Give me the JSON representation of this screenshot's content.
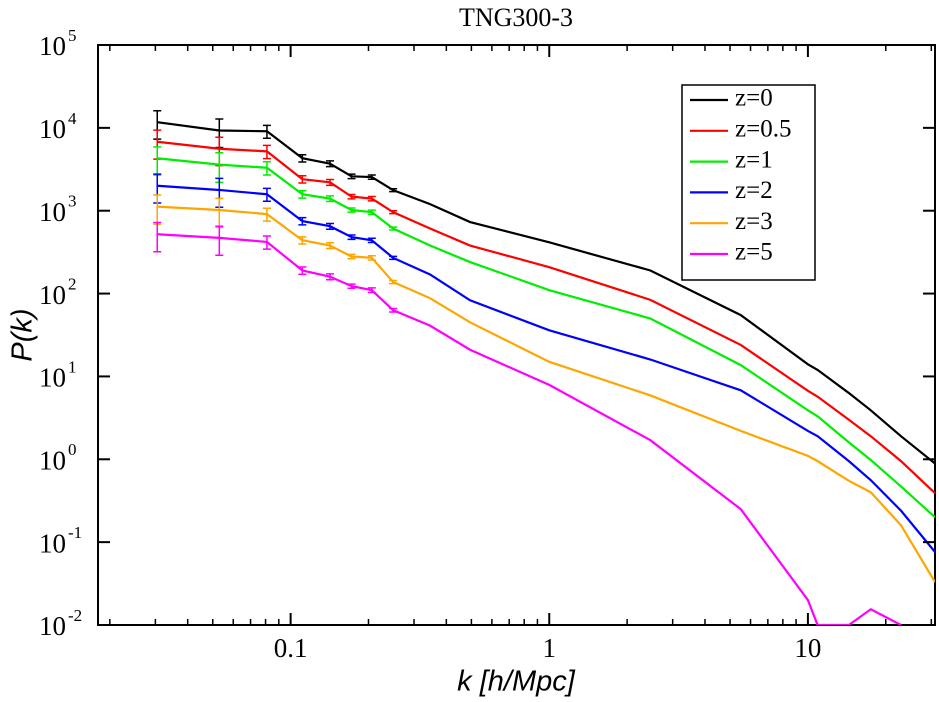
{
  "chart_data": {
    "type": "line",
    "title": "TNG300-3",
    "xlabel": "k [h/Mpc]",
    "ylabel": "P(k)",
    "xscale": "log",
    "yscale": "log",
    "xlim": [
      0.018,
      31
    ],
    "ylim": [
      0.01,
      100000
    ],
    "xticks": [
      0.1,
      1,
      10
    ],
    "xminorticks": [
      0.02,
      0.03,
      0.04,
      0.05,
      0.06,
      0.07,
      0.08,
      0.09,
      0.2,
      0.3,
      0.4,
      0.5,
      0.6,
      0.7,
      0.8,
      0.9,
      2,
      3,
      4,
      5,
      6,
      7,
      8,
      9,
      20,
      30
    ],
    "yticks": [
      {
        "value": 0.01,
        "label": "10",
        "exponent": "-2"
      },
      {
        "value": 0.1,
        "label": "10",
        "exponent": "-1"
      },
      {
        "value": 1,
        "label": "10",
        "exponent": "0"
      },
      {
        "value": 10,
        "label": "10",
        "exponent": "1"
      },
      {
        "value": 100,
        "label": "10",
        "exponent": "2"
      },
      {
        "value": 1000,
        "label": "10",
        "exponent": "3"
      },
      {
        "value": 10000,
        "label": "10",
        "exponent": "4"
      },
      {
        "value": 100000,
        "label": "10",
        "exponent": "5"
      }
    ],
    "legend": "upper right",
    "x": [
      0.0305,
      0.053,
      0.081,
      0.111,
      0.142,
      0.172,
      0.206,
      0.249,
      0.346,
      0.494,
      1,
      2.46,
      5.5,
      10,
      10.9,
      14.4,
      17.5,
      22.9,
      31
    ],
    "series": [
      {
        "name": "z=0",
        "color": "#000000",
        "values": [
          11700,
          9300,
          9100,
          4300,
          3700,
          2600,
          2550,
          1770,
          1200,
          730,
          415,
          190,
          55,
          14,
          12,
          6.3,
          3.9,
          1.9,
          0.89
        ],
        "errors": [
          4400,
          3500,
          1600,
          430,
          300,
          160,
          150,
          70,
          null,
          null,
          null,
          null,
          null,
          null,
          null,
          null,
          null,
          null,
          null
        ]
      },
      {
        "name": "z=0.5",
        "color": "#ff0000",
        "values": [
          6800,
          5600,
          5200,
          2400,
          2200,
          1480,
          1400,
          960,
          610,
          380,
          208,
          84,
          24,
          6.7,
          5.7,
          3.0,
          1.9,
          0.95,
          0.39
        ],
        "errors": [
          2600,
          2100,
          940,
          240,
          180,
          90,
          85,
          38,
          null,
          null,
          null,
          null,
          null,
          null,
          null,
          null,
          null,
          null,
          null
        ]
      },
      {
        "name": "z=1",
        "color": "#00ee00",
        "values": [
          4300,
          3600,
          3300,
          1580,
          1400,
          1020,
          960,
          610,
          380,
          240,
          110,
          50,
          13.7,
          3.9,
          3.3,
          1.6,
          0.98,
          0.47,
          0.2
        ],
        "errors": [
          1600,
          1400,
          600,
          160,
          110,
          60,
          58,
          24,
          null,
          null,
          null,
          null,
          null,
          null,
          null,
          null,
          null,
          null,
          null
        ]
      },
      {
        "name": "z=2",
        "color": "#0000ff",
        "values": [
          2000,
          1780,
          1580,
          750,
          650,
          480,
          440,
          270,
          170,
          83,
          36,
          16,
          6.8,
          2.2,
          1.9,
          0.95,
          0.56,
          0.24,
          0.076
        ],
        "errors": [
          760,
          680,
          280,
          75,
          52,
          29,
          26,
          11,
          null,
          null,
          null,
          null,
          null,
          null,
          null,
          null,
          null,
          null,
          null
        ]
      },
      {
        "name": "z=3",
        "color": "#ffa500",
        "values": [
          1120,
          1020,
          910,
          440,
          380,
          280,
          270,
          138,
          88,
          45,
          15,
          5.9,
          2.2,
          1.1,
          0.95,
          0.55,
          0.4,
          0.16,
          0.033
        ],
        "errors": [
          430,
          390,
          160,
          44,
          30,
          17,
          16,
          6,
          null,
          null,
          null,
          null,
          null,
          null,
          null,
          null,
          null,
          null,
          null
        ]
      },
      {
        "name": "z=5",
        "color": "#ff00ff",
        "values": [
          520,
          470,
          420,
          190,
          160,
          123,
          110,
          63,
          41,
          21,
          7.9,
          1.7,
          0.25,
          0.02,
          0.01,
          0.01,
          0.0155,
          0.01,
          null
        ],
        "errors": [
          200,
          180,
          76,
          19,
          13,
          7,
          7,
          3,
          null,
          null,
          null,
          null,
          null,
          null,
          null,
          null,
          null,
          null,
          null
        ]
      }
    ]
  }
}
